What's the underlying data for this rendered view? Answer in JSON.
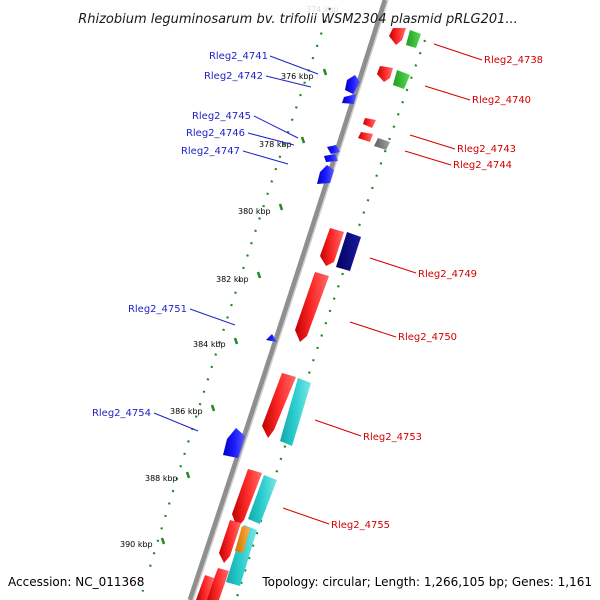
{
  "title": "Rhizobium leguminosarum bv. trifolii WSM2304 plasmid pRLG201...",
  "footer": {
    "accession": "Accession: NC_011368",
    "summary": "Topology: circular; Length: 1,266,105 bp; Genes: 1,161"
  },
  "ticks": [
    {
      "label": "374 kbp",
      "faded": true
    },
    {
      "label": "376 kbp"
    },
    {
      "label": "378 kbp"
    },
    {
      "label": "380 kbp"
    },
    {
      "label": "382 kbp"
    },
    {
      "label": "384 kbp"
    },
    {
      "label": "386 kbp"
    },
    {
      "label": "388 kbp"
    },
    {
      "label": "390 kbp"
    }
  ],
  "genes_left": [
    {
      "name": "Rleg2_4741"
    },
    {
      "name": "Rleg2_4742"
    },
    {
      "name": "Rleg2_4745"
    },
    {
      "name": "Rleg2_4746"
    },
    {
      "name": "Rleg2_4747"
    },
    {
      "name": "Rleg2_4751"
    },
    {
      "name": "Rleg2_4754"
    }
  ],
  "genes_right": [
    {
      "name": "Rleg2_4738"
    },
    {
      "name": "Rleg2_4740"
    },
    {
      "name": "Rleg2_4743"
    },
    {
      "name": "Rleg2_4744"
    },
    {
      "name": "Rleg2_4749"
    },
    {
      "name": "Rleg2_4750"
    },
    {
      "name": "Rleg2_4753"
    },
    {
      "name": "Rleg2_4755"
    }
  ],
  "colors": {
    "backbone": "#9a9a9a",
    "tick": "#1f8a1f",
    "forward_cds": "#ff1a1a",
    "reverse_cds": "#1a1aff",
    "rna": "#2ccfcf",
    "green_feature": "#33cc33",
    "dark_blue_feature": "#000080",
    "grey_feature": "#808080",
    "orange_feature": "#ff9900",
    "label_left": "#1f23c8",
    "label_right": "#d40000"
  }
}
